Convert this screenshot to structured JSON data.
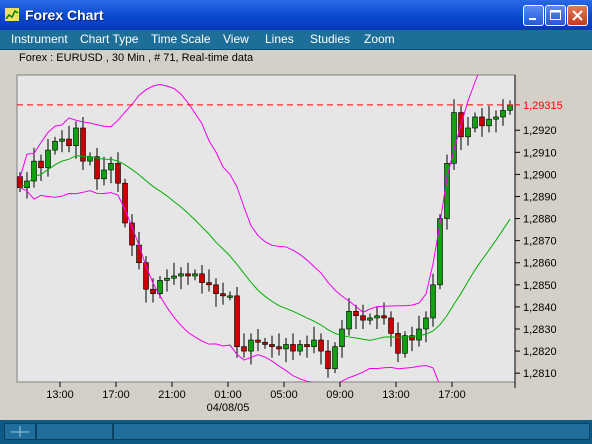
{
  "window": {
    "title": "Forex Chart",
    "icon": "chart-app-icon"
  },
  "menu": [
    "Instrument",
    "Chart Type",
    "Time Scale",
    "View",
    "Lines",
    "Studies",
    "Zoom"
  ],
  "info_line": "Forex : EURUSD , 30 Min , # 71, Real-time data",
  "colors": {
    "title_bar": "#0A48D0",
    "menu_bar": "#1E6E9A",
    "plot_bg": "#E6E6E6",
    "up_candle": "#10A010",
    "down_candle": "#C80000",
    "bollinger": "#F000F0",
    "moving_average": "#00B000",
    "last_price_line": "#FF0000"
  },
  "chart_data": {
    "type": "candlestick",
    "symbol": "EURUSD",
    "timeframe": "30 Min",
    "bars_count": 71,
    "last_price": "1,29315",
    "y_ticks": [
      "1,2920",
      "1,2910",
      "1,2900",
      "1,2890",
      "1,2880",
      "1,2870",
      "1,2860",
      "1,2850",
      "1,2840",
      "1,2830",
      "1,2820",
      "1,2810"
    ],
    "ylim": [
      1.2806,
      1.2945
    ],
    "x_ticks": [
      "13:00",
      "17:00",
      "21:00",
      "01:00",
      "05:00",
      "09:00",
      "13:00",
      "17:00"
    ],
    "x_tick_bars": [
      6,
      14,
      22,
      30,
      38,
      46,
      54,
      62
    ],
    "date_label": "04/08/05",
    "date_label_bar": 30,
    "close": [
      1.2894,
      1.2897,
      1.2906,
      1.2903,
      1.2911,
      1.2915,
      1.2916,
      1.2913,
      1.2921,
      1.2906,
      1.2908,
      1.2898,
      1.2902,
      1.2905,
      1.2896,
      1.2878,
      1.2868,
      1.286,
      1.2848,
      1.2846,
      1.2852,
      1.2853,
      1.2854,
      1.2855,
      1.2854,
      1.2855,
      1.2851,
      1.285,
      1.2846,
      1.2845,
      1.2845,
      1.2822,
      1.282,
      1.2825,
      1.2824,
      1.2823,
      1.2822,
      1.2821,
      1.2823,
      1.282,
      1.2823,
      1.2822,
      1.2825,
      1.282,
      1.2812,
      1.2822,
      1.283,
      1.2838,
      1.2836,
      1.2834,
      1.2835,
      1.2836,
      1.2835,
      1.2828,
      1.2819,
      1.2827,
      1.2825,
      1.283,
      1.2835,
      1.285,
      1.288,
      1.2905,
      1.2928,
      1.2917,
      1.2921,
      1.2926,
      1.2922,
      1.2925,
      1.2926,
      1.2929,
      1.29315
    ]
  }
}
